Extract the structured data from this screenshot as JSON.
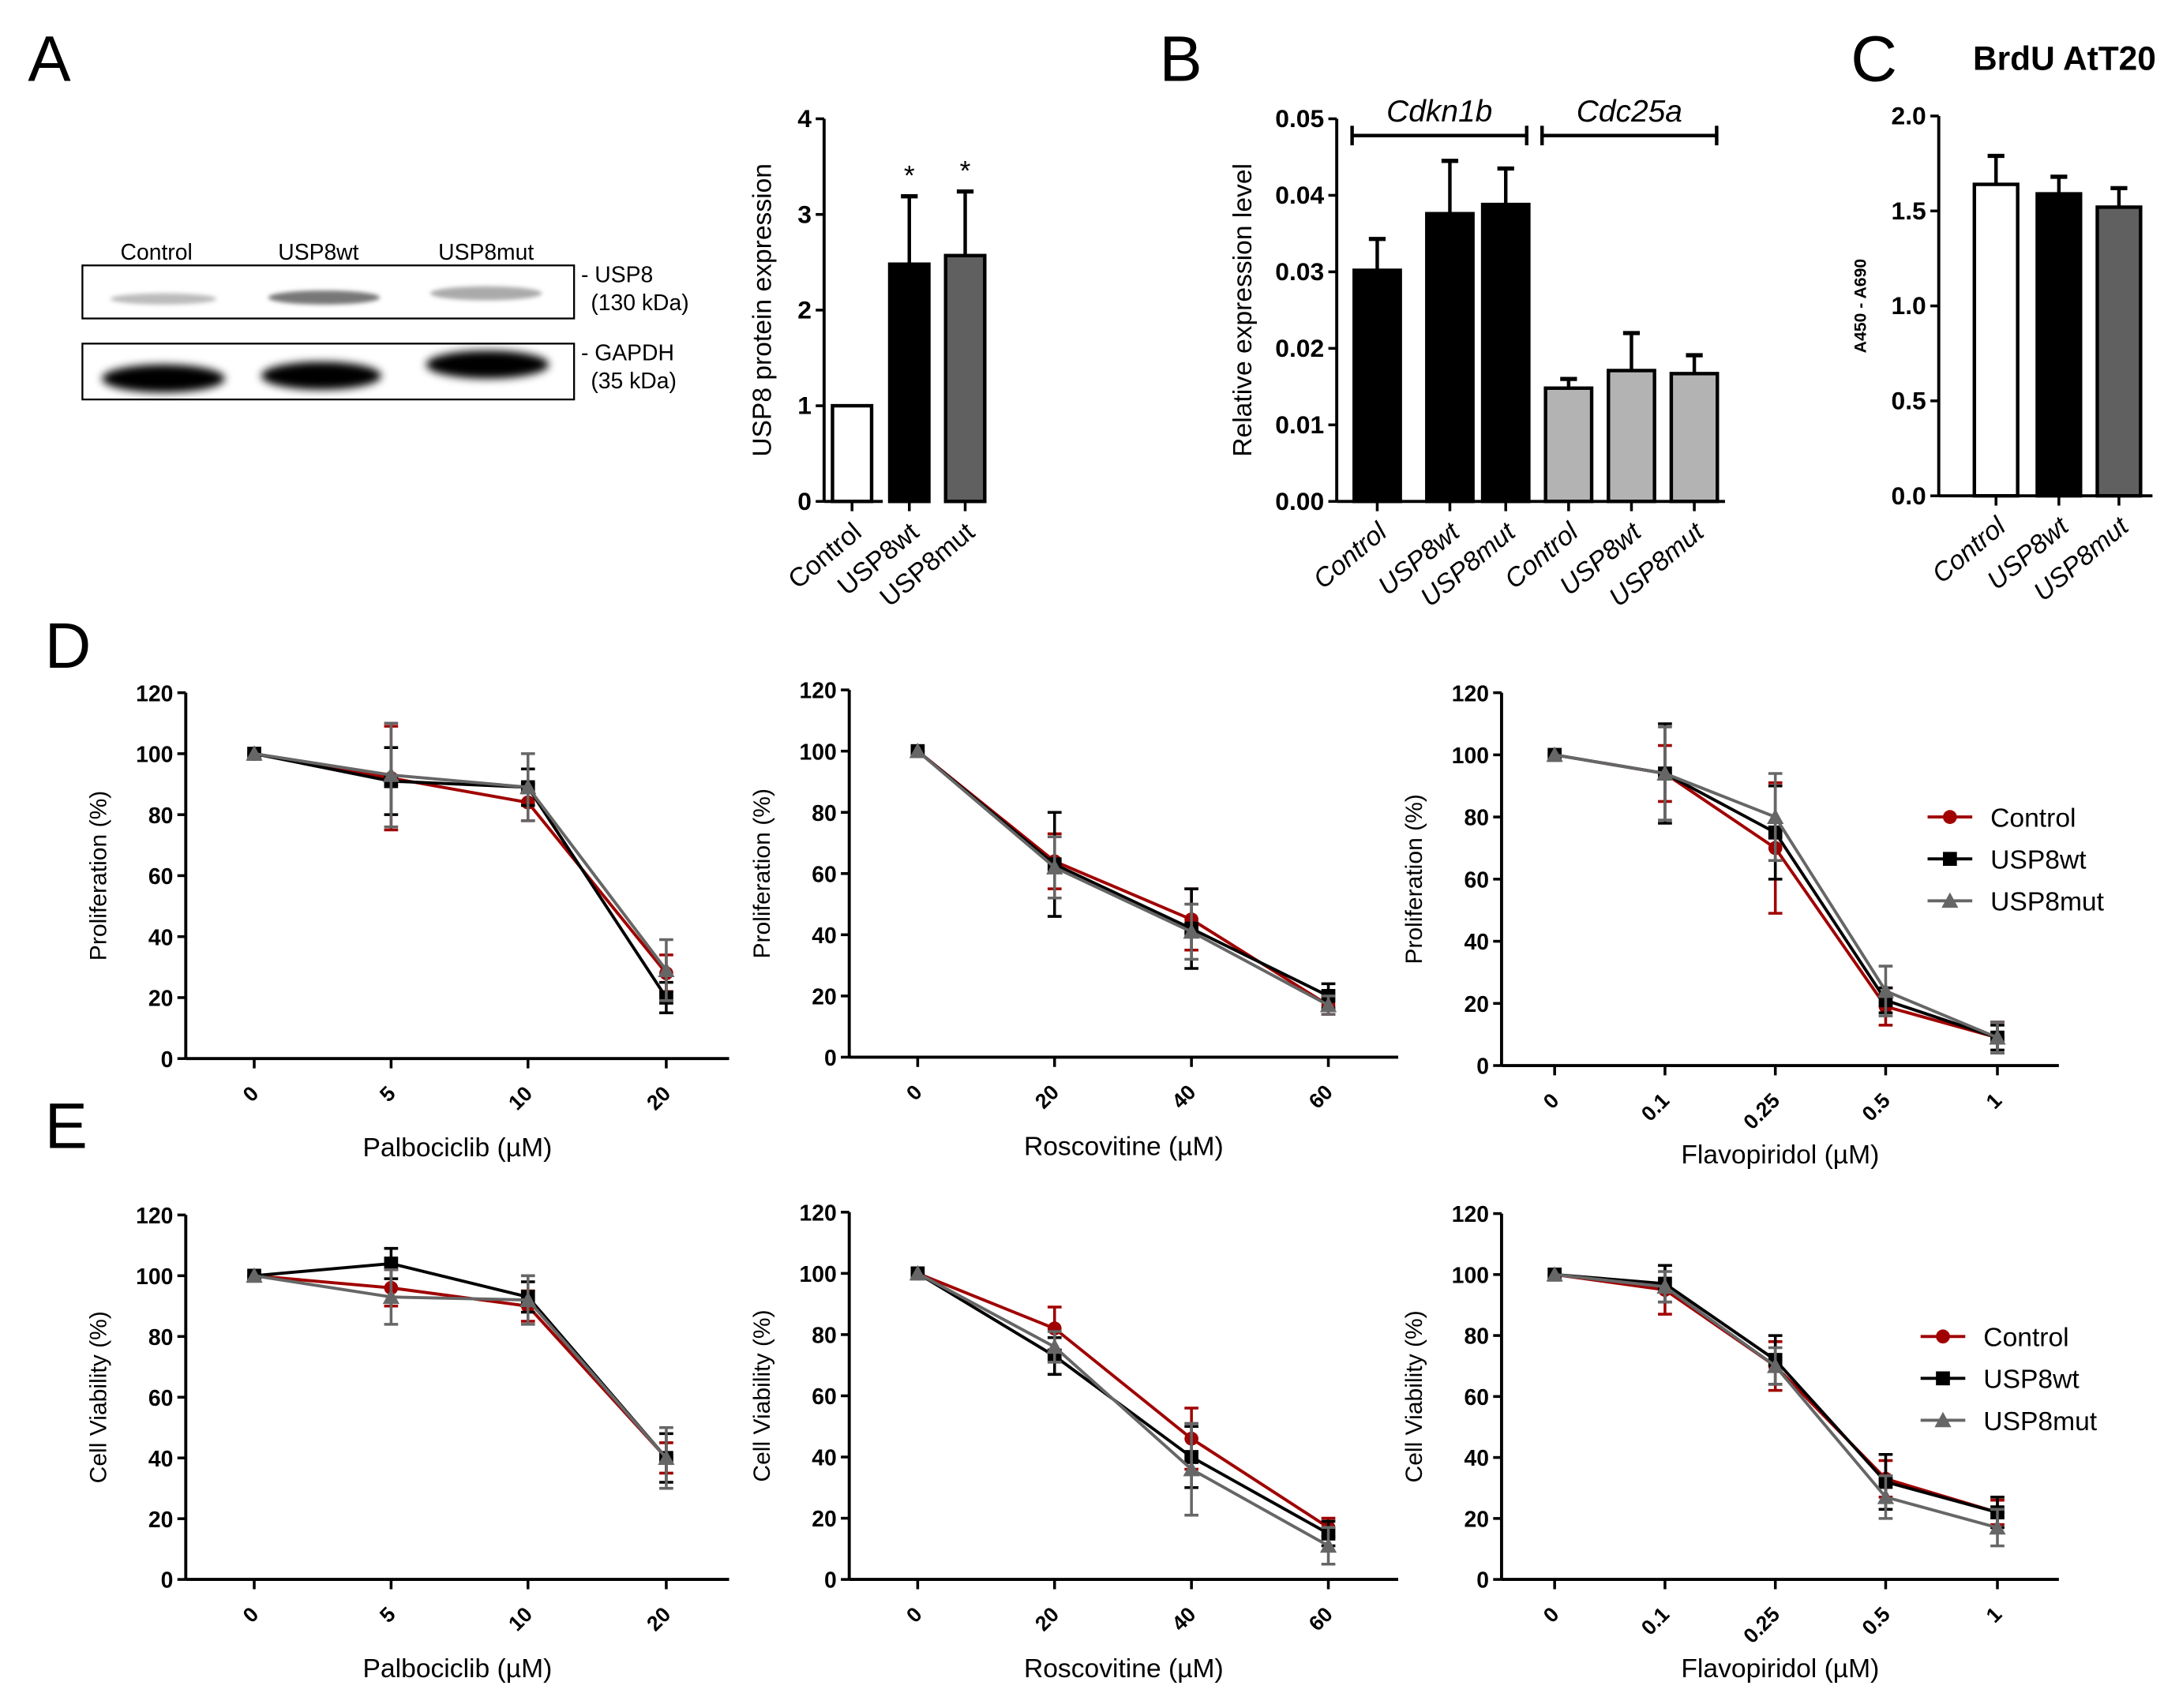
{
  "panel_letters": {
    "a": "A",
    "b": "B",
    "c": "C",
    "d": "D",
    "e": "E"
  },
  "western_blot": {
    "lanes": [
      "Control",
      "USP8wt",
      "USP8mut"
    ],
    "bands": [
      {
        "name": "- USP8",
        "size": "(130 kDa)"
      },
      {
        "name": "- GAPDH",
        "size": "(35 kDa)"
      }
    ]
  },
  "colors": {
    "control": "#a00000",
    "usp8wt": "#000000",
    "usp8mut": "#666666",
    "bar_grey": "#b3b3b3"
  },
  "chart_data": [
    {
      "id": "A",
      "type": "bar",
      "title": "",
      "ylabel": "USP8 protein expression",
      "xlabel": "",
      "categories": [
        "Control",
        "USP8wt",
        "USP8mut"
      ],
      "values": [
        1.0,
        2.48,
        2.57
      ],
      "err": [
        0,
        0.71,
        0.67
      ],
      "annotations": [
        "",
        "*",
        "*"
      ],
      "fills": [
        "#ffffff",
        "#000000",
        "#606060"
      ],
      "ylim": [
        0,
        4
      ],
      "yticks": [
        "0",
        "1",
        "2",
        "3",
        "4"
      ]
    },
    {
      "id": "B",
      "type": "bar",
      "title": "",
      "ylabel": "Relative expression level",
      "xlabel": "",
      "groups": [
        "Cdkn1b",
        "Cdc25a"
      ],
      "categories": [
        "Control",
        "USP8wt",
        "USP8mut",
        "Control",
        "USP8wt",
        "USP8mut"
      ],
      "values": [
        0.0302,
        0.0376,
        0.0388,
        0.0148,
        0.0171,
        0.0167
      ],
      "err": [
        0.0041,
        0.0069,
        0.0047,
        0.0012,
        0.0049,
        0.0024
      ],
      "fills": [
        "#000000",
        "#000000",
        "#000000",
        "#b3b3b3",
        "#b3b3b3",
        "#b3b3b3"
      ],
      "ylim": [
        0,
        0.05
      ],
      "yticks": [
        "0.00",
        "0.01",
        "0.02",
        "0.03",
        "0.04",
        "0.05"
      ]
    },
    {
      "id": "C",
      "type": "bar",
      "title": "BrdU AtT20",
      "ylabel": "A450 - A690",
      "xlabel": "",
      "categories": [
        "Control",
        "USP8wt",
        "USP8mut"
      ],
      "values": [
        1.64,
        1.59,
        1.52
      ],
      "err": [
        0.15,
        0.09,
        0.1
      ],
      "fills": [
        "#ffffff",
        "#000000",
        "#606060"
      ],
      "ylim": [
        0,
        2.0
      ],
      "yticks": [
        "0.0",
        "0.5",
        "1.0",
        "1.5",
        "2.0"
      ]
    },
    {
      "id": "D1",
      "type": "line",
      "ylabel": "Proliferation (%)",
      "xlabel": "Palbociclib (µM)",
      "x": [
        "0",
        "5",
        "10",
        "20"
      ],
      "ylim": [
        0,
        120
      ],
      "yticks": [
        "0",
        "20",
        "40",
        "60",
        "80",
        "100",
        "120"
      ],
      "series": [
        {
          "name": "Control",
          "values": [
            100,
            92,
            84,
            28
          ],
          "err": [
            0,
            17,
            6,
            6
          ]
        },
        {
          "name": "USP8wt",
          "values": [
            100,
            91,
            89,
            20
          ],
          "err": [
            0,
            11,
            6,
            5
          ]
        },
        {
          "name": "USP8mut",
          "values": [
            100,
            93,
            89,
            29
          ],
          "err": [
            0,
            17,
            11,
            10
          ]
        }
      ]
    },
    {
      "id": "D2",
      "type": "line",
      "ylabel": "Proliferation (%)",
      "xlabel": "Roscovitine (µM)",
      "x": [
        "0",
        "20",
        "40",
        "60"
      ],
      "ylim": [
        0,
        120
      ],
      "yticks": [
        "0",
        "20",
        "40",
        "60",
        "80",
        "100",
        "120"
      ],
      "series": [
        {
          "name": "Control",
          "values": [
            100,
            64,
            45,
            17
          ],
          "err": [
            0,
            9,
            10,
            3
          ]
        },
        {
          "name": "USP8wt",
          "values": [
            100,
            63,
            42,
            20
          ],
          "err": [
            0,
            17,
            13,
            4
          ]
        },
        {
          "name": "USP8mut",
          "values": [
            100,
            62,
            41,
            17
          ],
          "err": [
            0,
            10,
            9,
            3
          ]
        }
      ]
    },
    {
      "id": "D3",
      "type": "line",
      "ylabel": "Proliferation (%)",
      "xlabel": "Flavopiridol (µM)",
      "x": [
        "0",
        "0.1",
        "0.25",
        "0.5",
        "1"
      ],
      "ylim": [
        0,
        120
      ],
      "yticks": [
        "0",
        "20",
        "40",
        "60",
        "80",
        "100",
        "120"
      ],
      "legend": "right",
      "series": [
        {
          "name": "Control",
          "values": [
            100,
            94,
            70,
            19,
            9
          ],
          "err": [
            0,
            9,
            21,
            6,
            5
          ]
        },
        {
          "name": "USP8wt",
          "values": [
            100,
            94,
            75,
            21,
            9
          ],
          "err": [
            0,
            16,
            15,
            4,
            4
          ]
        },
        {
          "name": "USP8mut",
          "values": [
            100,
            94,
            80,
            24,
            9
          ],
          "err": [
            0,
            15,
            14,
            8,
            5
          ]
        }
      ]
    },
    {
      "id": "E1",
      "type": "line",
      "ylabel": "Cell Viability (%)",
      "xlabel": "Palbociclib (µM)",
      "x": [
        "0",
        "5",
        "10",
        "20"
      ],
      "ylim": [
        0,
        120
      ],
      "yticks": [
        "0",
        "20",
        "40",
        "60",
        "80",
        "100",
        "120"
      ],
      "series": [
        {
          "name": "Control",
          "values": [
            100,
            96,
            90,
            40
          ],
          "err": [
            0,
            6,
            5,
            5
          ]
        },
        {
          "name": "USP8wt",
          "values": [
            100,
            104,
            93,
            40
          ],
          "err": [
            0,
            5,
            5,
            8
          ]
        },
        {
          "name": "USP8mut",
          "values": [
            100,
            93,
            92,
            40
          ],
          "err": [
            0,
            9,
            8,
            10
          ]
        }
      ]
    },
    {
      "id": "E2",
      "type": "line",
      "ylabel": "Cell Viability (%)",
      "xlabel": "Roscovitine (µM)",
      "x": [
        "0",
        "20",
        "40",
        "60"
      ],
      "ylim": [
        0,
        120
      ],
      "yticks": [
        "0",
        "20",
        "40",
        "60",
        "80",
        "100",
        "120"
      ],
      "series": [
        {
          "name": "Control",
          "values": [
            100,
            82,
            46,
            17
          ],
          "err": [
            0,
            7,
            10,
            3
          ]
        },
        {
          "name": "USP8wt",
          "values": [
            100,
            73,
            40,
            15
          ],
          "err": [
            0,
            6,
            10,
            4
          ]
        },
        {
          "name": "USP8mut",
          "values": [
            100,
            76,
            36,
            11
          ],
          "err": [
            0,
            5,
            15,
            6
          ]
        }
      ]
    },
    {
      "id": "E3",
      "type": "line",
      "ylabel": "Cell Viability (%)",
      "xlabel": "Flavopiridol (µM)",
      "x": [
        "0",
        "0.1",
        "0.25",
        "0.5",
        "1"
      ],
      "ylim": [
        0,
        120
      ],
      "yticks": [
        "0",
        "20",
        "40",
        "60",
        "80",
        "100",
        "120"
      ],
      "legend": "right",
      "series": [
        {
          "name": "Control",
          "values": [
            100,
            95,
            70,
            33,
            22
          ],
          "err": [
            0,
            8,
            8,
            6,
            4
          ]
        },
        {
          "name": "USP8wt",
          "values": [
            100,
            97,
            72,
            32,
            22
          ],
          "err": [
            0,
            6,
            8,
            9,
            5
          ]
        },
        {
          "name": "USP8mut",
          "values": [
            100,
            96,
            70,
            27,
            17
          ],
          "err": [
            0,
            5,
            6,
            7,
            6
          ]
        }
      ]
    }
  ]
}
